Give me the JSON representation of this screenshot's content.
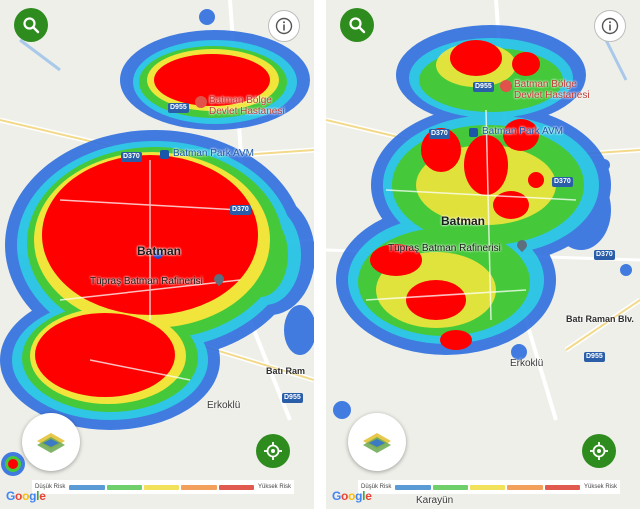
{
  "colors": {
    "risk_levels": [
      "#5b9bd5",
      "#6fcf6a",
      "#f2e15b",
      "#f2a05c",
      "#e05a4f"
    ],
    "primary": "#2e8b1e",
    "heat_low": "#2f6fe0",
    "heat_high": "#ff0000"
  },
  "legend": {
    "low": "Düşük Risk",
    "high": "Yüksek Risk"
  },
  "attribution": "Google",
  "icons": {
    "search": "search-icon",
    "info": "info-icon",
    "layers": "map-layers-icon",
    "locate": "locate-icon"
  },
  "left": {
    "labels": {
      "hospital_line1": "Batman Bölge",
      "hospital_line2": "Devlet Hastanesi",
      "mall": "Batman Park AVM",
      "city": "Batman",
      "refinery": "Tüpraş Batman Rafinerisi",
      "erkoklu": "Erkoklü",
      "bati_raman": "Batı Ram",
      "road_d955a": "D955",
      "road_d370a": "D370",
      "road_d370b": "D370",
      "road_d955b": "D955"
    }
  },
  "right": {
    "labels": {
      "hospital_line1": "Batman Bölge",
      "hospital_line2": "Devlet Hastanesi",
      "mall": "Batman Park AVM",
      "city": "Batman",
      "refinery": "Tüpraş Batman Rafinerisi",
      "erkoklu": "Erkoklü",
      "bati_raman": "Batı Raman Blv.",
      "karayun": "Karayün",
      "road_d955a": "D955",
      "road_d370a": "D370",
      "road_d370b": "D370",
      "road_d370c": "D370",
      "road_d955b": "D955"
    }
  }
}
